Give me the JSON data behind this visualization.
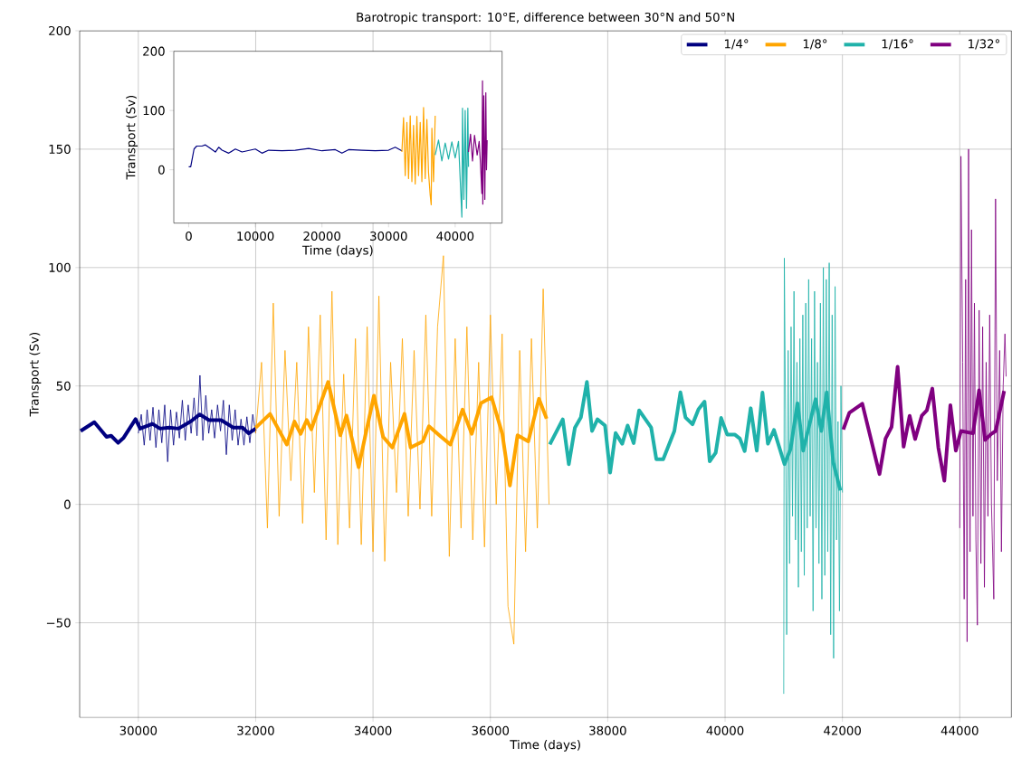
{
  "chart_data": [
    {
      "type": "line",
      "title": "Barotropic transport: 10°E, difference between 30°N and 50°N",
      "xlabel": "Time (days)",
      "ylabel": "Transport (Sv)",
      "xlim": [
        29000,
        44880
      ],
      "ylim": [
        -90,
        200
      ],
      "xticks": [
        30000,
        32000,
        34000,
        36000,
        38000,
        40000,
        42000,
        44000
      ],
      "yticks": [
        {
          "value": -50,
          "label": "−50"
        },
        0,
        50,
        100,
        150,
        200
      ],
      "grid": true,
      "legend": "top right",
      "series": [
        {
          "color": "#000080",
          "x": [
            30000,
            30050,
            30100,
            30150,
            30200,
            30250,
            30300,
            30350,
            30400,
            30450,
            30500,
            30550,
            30600,
            30650,
            30700,
            30750,
            30800,
            30850,
            30900,
            30950,
            31000,
            31050,
            31100,
            31150,
            31200,
            31250,
            31300,
            31350,
            31400,
            31450,
            31500,
            31550,
            31600,
            31650,
            31700,
            31750,
            31800,
            31850,
            31900,
            31950,
            32000
          ],
          "values": [
            30,
            38,
            25,
            40,
            27,
            41,
            24,
            40,
            26,
            42,
            18,
            40,
            25,
            39,
            28,
            44,
            27,
            42,
            30,
            45,
            29,
            54.5,
            27,
            46,
            30,
            40,
            28,
            42,
            31,
            44,
            21,
            42,
            27,
            40,
            25,
            36,
            25,
            37,
            26,
            38,
            30
          ]
        },
        {
          "name": "1/4°",
          "color": "#000080",
          "x": [
            29016,
            29250,
            29458,
            29536,
            29656,
            29745,
            29953,
            30031,
            30240,
            30370,
            30526,
            30682,
            30891,
            31047,
            31203,
            31411,
            31620,
            31776,
            31880,
            32000
          ],
          "values": [
            31,
            34.7,
            28.5,
            29,
            26,
            28,
            36,
            32,
            34,
            32,
            32.4,
            32,
            35,
            38,
            35.6,
            35.6,
            32.4,
            32.4,
            30,
            32
          ]
        },
        {
          "color": "#ffa500",
          "x": [
            32000,
            32100,
            32200,
            32300,
            32400,
            32500,
            32600,
            32700,
            32800,
            32900,
            33000,
            33100,
            33200,
            33300,
            33400,
            33500,
            33600,
            33700,
            33800,
            33900,
            34000,
            34100,
            34200,
            34300,
            34400,
            34500,
            34600,
            34700,
            34800,
            34900,
            35000,
            35100,
            35200,
            35300,
            35400,
            35500,
            35600,
            35700,
            35800,
            35900,
            36000,
            36100,
            36200,
            36300,
            36400,
            36500,
            36600,
            36700,
            36800,
            36900,
            37000
          ],
          "values": [
            30,
            60,
            -10,
            85,
            -5,
            65,
            10,
            60,
            -8,
            75,
            5,
            80,
            -15,
            90,
            -17,
            55,
            -10,
            70,
            -17,
            75,
            -20,
            88,
            -24,
            60,
            5,
            70,
            -5,
            65,
            -2,
            80,
            -5,
            75,
            105,
            -22,
            70,
            -10,
            75,
            -15,
            60,
            -18,
            80,
            0,
            72,
            -43,
            -59,
            65,
            -20,
            70,
            -10,
            91,
            0
          ]
        },
        {
          "name": "1/8°",
          "color": "#ffa500",
          "x": [
            32000,
            32245,
            32531,
            32661,
            32766,
            32870,
            32948,
            33078,
            33234,
            33443,
            33547,
            33755,
            33859,
            34016,
            34172,
            34328,
            34536,
            34641,
            34849,
            34953,
            35161,
            35318,
            35526,
            35682,
            35839,
            36021,
            36203,
            36333,
            36463,
            36646,
            36828,
            36958
          ],
          "values": [
            32.4,
            38.2,
            25.3,
            35,
            29.8,
            35.6,
            31.7,
            40.7,
            51.7,
            29.2,
            37.5,
            15.7,
            27.9,
            45.9,
            28.5,
            24,
            38.2,
            24,
            26.6,
            33,
            28.5,
            25.3,
            40,
            29.8,
            42.7,
            45.2,
            29.8,
            8,
            29.2,
            26.6,
            44.6,
            36.2
          ]
        },
        {
          "color": "#20b2aa",
          "x": [
            41000,
            41010,
            41030,
            41050,
            41075,
            41100,
            41125,
            41150,
            41175,
            41200,
            41225,
            41250,
            41275,
            41300,
            41325,
            41350,
            41375,
            41400,
            41425,
            41450,
            41475,
            41500,
            41525,
            41550,
            41575,
            41600,
            41625,
            41650,
            41675,
            41700,
            41725,
            41750,
            41775,
            41800,
            41825,
            41850,
            41875,
            41900,
            41925,
            41950,
            41975,
            42000
          ],
          "values": [
            -80,
            104,
            40,
            -55,
            65,
            -25,
            75,
            -5,
            90,
            -15,
            60,
            -35,
            70,
            -20,
            80,
            -30,
            85,
            -10,
            95,
            -5,
            70,
            -45,
            90,
            -10,
            60,
            -25,
            85,
            -40,
            100,
            -30,
            95,
            -20,
            102,
            -55,
            80,
            -65,
            92,
            -15,
            35,
            -45,
            50,
            5
          ]
        },
        {
          "name": "1/16°",
          "color": "#20b2aa",
          "x": [
            37013,
            37234,
            37337,
            37440,
            37542,
            37645,
            37733,
            37825,
            37954,
            38041,
            38134,
            38247,
            38339,
            38442,
            38535,
            38740,
            38828,
            38946,
            39136,
            39239,
            39326,
            39445,
            39547,
            39650,
            39738,
            39840,
            39933,
            40036,
            40164,
            40252,
            40334,
            40437,
            40540,
            40637,
            40730,
            40833,
            41013,
            41116,
            41234,
            41331,
            41542,
            41640,
            41732,
            41845,
            41964
          ],
          "values": [
            25.3,
            35.9,
            17,
            32.3,
            36.7,
            51.7,
            31,
            35.9,
            33.3,
            13.4,
            30.1,
            25.6,
            33.3,
            25.9,
            39.7,
            32.5,
            19.1,
            19.1,
            31,
            47.3,
            36.7,
            33.8,
            40.2,
            43.4,
            18.2,
            21.8,
            36.5,
            29.5,
            29.5,
            27.8,
            22.5,
            40.6,
            22.7,
            47.2,
            25.6,
            31.4,
            17,
            23.4,
            42.7,
            22.7,
            44.4,
            31,
            47.3,
            17.6,
            5.9
          ]
        },
        {
          "color": "#800080",
          "x": [
            44000,
            44020,
            44050,
            44075,
            44100,
            44125,
            44150,
            44175,
            44200,
            44225,
            44250,
            44275,
            44300,
            44330,
            44360,
            44390,
            44420,
            44450,
            44480,
            44510,
            44540,
            44580,
            44610,
            44640,
            44680,
            44710,
            44740,
            44770,
            44790
          ],
          "values": [
            -10,
            147,
            60,
            -40,
            95,
            -58,
            150,
            -20,
            116,
            -5,
            85,
            -15,
            -51,
            82,
            -25,
            75,
            -35,
            60,
            -5,
            80,
            0,
            -40,
            129,
            10,
            65,
            -20,
            50,
            72,
            54
          ]
        },
        {
          "name": "1/32°",
          "color": "#800080",
          "x": [
            42015,
            42118,
            42339,
            42632,
            42735,
            42838,
            42941,
            43043,
            43146,
            43239,
            43352,
            43439,
            43532,
            43635,
            43737,
            43840,
            43933,
            44020,
            44226,
            44329,
            44432,
            44535,
            44612,
            44756
          ],
          "values": [
            31.6,
            38.7,
            42.5,
            12.8,
            27.8,
            32.7,
            58.1,
            24.4,
            37.4,
            27.6,
            37.4,
            39.7,
            48.9,
            24,
            10,
            41.9,
            22.7,
            31,
            30,
            48.2,
            27.2,
            29.7,
            31,
            47.9
          ]
        }
      ]
    },
    {
      "type": "line",
      "xlabel": "Time (days)",
      "ylabel": "Transport (Sv)",
      "xlim": [
        -2240,
        47040
      ],
      "ylim": [
        -90,
        200
      ],
      "xticks": [
        0,
        10000,
        20000,
        30000,
        40000
      ],
      "yticks": [
        0,
        100,
        200
      ],
      "series": [
        {
          "color": "#000080",
          "x": [
            0,
            300,
            800,
            1200,
            2000,
            2500,
            3000,
            4000,
            4500,
            5000,
            6000,
            7000,
            8000,
            10000,
            11000,
            12000,
            14000,
            16000,
            18000,
            20000,
            22000,
            23000,
            24000,
            26000,
            28000,
            30000,
            31000,
            32000
          ],
          "values": [
            5,
            5,
            35,
            40,
            40,
            42,
            38,
            30,
            38,
            33,
            28,
            35,
            30,
            35,
            28,
            33,
            32,
            33,
            36,
            32,
            34,
            28,
            34,
            33,
            32,
            33,
            38,
            32
          ]
        },
        {
          "color": "#ffa500",
          "x": [
            32000,
            32250,
            32500,
            32750,
            33000,
            33250,
            33500,
            33750,
            34000,
            34250,
            34500,
            34750,
            35000,
            35250,
            35500,
            35750,
            36000,
            36250,
            36400,
            36500,
            36750,
            37000
          ],
          "values": [
            30,
            88,
            -10,
            80,
            -15,
            91,
            -20,
            75,
            -24,
            90,
            -10,
            80,
            -20,
            105,
            -15,
            85,
            -5,
            -43,
            -59,
            70,
            -20,
            91
          ]
        },
        {
          "color": "#20b2aa",
          "x": [
            37000,
            37500,
            38000,
            38500,
            39000,
            39500,
            40000,
            40500,
            41000,
            41100,
            41300,
            41500,
            41700,
            41900,
            42000
          ],
          "values": [
            25,
            50,
            15,
            45,
            18,
            47,
            20,
            48,
            -80,
            104,
            -50,
            100,
            -65,
            104,
            5
          ]
        },
        {
          "color": "#800080",
          "x": [
            42000,
            42300,
            42600,
            42900,
            43300,
            43600,
            43800,
            44000,
            44100,
            44150,
            44300,
            44450,
            44600,
            44700,
            44800
          ],
          "values": [
            30,
            60,
            15,
            58,
            25,
            48,
            10,
            -40,
            150,
            -58,
            125,
            -50,
            130,
            0,
            50
          ]
        }
      ]
    }
  ]
}
